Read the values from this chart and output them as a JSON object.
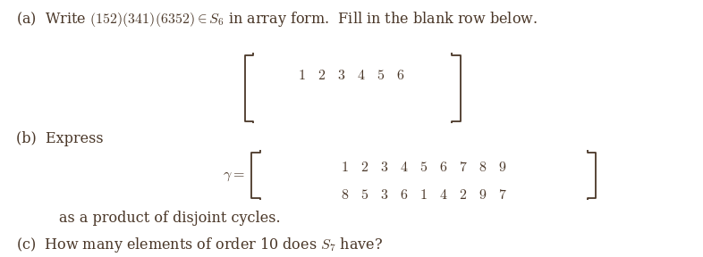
{
  "bg_color": "#ffffff",
  "text_color": "#4a3728",
  "figsize": [
    7.86,
    2.88
  ],
  "dpi": 100,
  "font_size_main": 11.5,
  "font_size_matrix": 11.5
}
